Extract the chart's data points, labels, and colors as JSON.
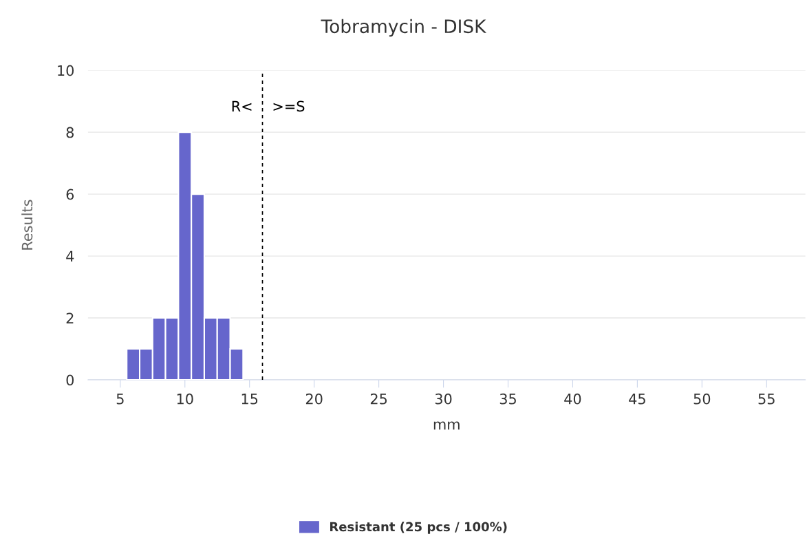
{
  "chart_data": {
    "type": "histogram",
    "title": "Tobramycin - DISK",
    "xlabel": "mm",
    "ylabel": "Results",
    "bins": [
      5.5,
      6.5,
      7.5,
      8.5,
      9.5,
      10.5,
      11.5,
      12.5,
      13.5,
      14.5
    ],
    "series": [
      {
        "name": "Resistant (25 pcs / 100%)",
        "color": "#6666cc",
        "values": [
          1,
          1,
          2,
          2,
          8,
          6,
          2,
          2,
          1
        ]
      }
    ],
    "xlim": [
      2.5,
      58
    ],
    "xticks": [
      5,
      10,
      15,
      20,
      25,
      30,
      35,
      40,
      45,
      50,
      55
    ],
    "ylim": [
      0,
      10
    ],
    "yticks": [
      0,
      2,
      4,
      6,
      8,
      10
    ],
    "ref_lines": [
      {
        "axis": "x",
        "value": 16,
        "color": "#000000",
        "line_style": "dashed"
      }
    ],
    "annotations": [
      {
        "text": "R<",
        "x": 16,
        "y": 8.8
      },
      {
        "text": ">=S",
        "x": 16,
        "y": 8.8
      }
    ],
    "grid": "y",
    "legend": "bottom"
  }
}
